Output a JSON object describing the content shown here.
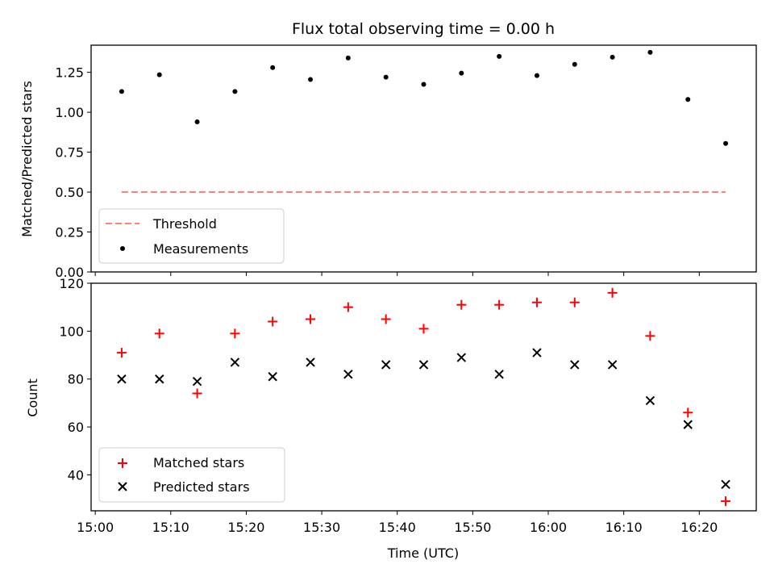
{
  "chart_data": [
    {
      "type": "scatter",
      "title": "Flux total observing time = 0.00 h",
      "xlabel": "",
      "ylabel": "Matched/Predicted stars",
      "ylim": [
        0,
        1.42
      ],
      "yticks": [
        0.0,
        0.25,
        0.5,
        0.75,
        1.0,
        1.25
      ],
      "ytick_labels": [
        "0.00",
        "0.25",
        "0.50",
        "0.75",
        "1.00",
        "1.25"
      ],
      "x_minutes": [
        903.5,
        908.5,
        913.5,
        918.5,
        923.5,
        928.5,
        933.5,
        938.5,
        943.5,
        948.5,
        953.5,
        958.5,
        963.5,
        968.5,
        973.5,
        978.5,
        983.5
      ],
      "series": [
        {
          "name": "Threshold",
          "kind": "line",
          "color": "#ff7f7f",
          "x": [
            903.5,
            983.5
          ],
          "values": [
            0.5,
            0.5
          ]
        },
        {
          "name": "Measurements",
          "kind": "dot",
          "color": "#000000",
          "values": [
            1.13,
            1.235,
            0.94,
            1.13,
            1.28,
            1.205,
            1.34,
            1.22,
            1.175,
            1.245,
            1.35,
            1.23,
            1.3,
            1.345,
            1.375,
            1.08,
            0.805
          ]
        }
      ],
      "legend_location": "lower-left"
    },
    {
      "type": "scatter",
      "title": "",
      "xlabel": "Time (UTC)",
      "ylabel": "Count",
      "ylim": [
        25,
        120
      ],
      "yticks": [
        40,
        60,
        80,
        100,
        120
      ],
      "ytick_labels": [
        "40",
        "60",
        "80",
        "100",
        "120"
      ],
      "x_minutes": [
        903.5,
        908.5,
        913.5,
        918.5,
        923.5,
        928.5,
        933.5,
        938.5,
        943.5,
        948.5,
        953.5,
        958.5,
        963.5,
        968.5,
        973.5,
        978.5,
        983.5
      ],
      "xticks_minutes": [
        900,
        910,
        920,
        930,
        940,
        950,
        960,
        970,
        980
      ],
      "xtick_labels": [
        "15:00",
        "15:10",
        "15:20",
        "15:30",
        "15:40",
        "15:50",
        "16:00",
        "16:10",
        "16:20"
      ],
      "series": [
        {
          "name": "Matched stars",
          "kind": "plus",
          "color": "#ff0000",
          "values": [
            91,
            99,
            74,
            99,
            104,
            105,
            110,
            105,
            101,
            111,
            111,
            112,
            112,
            116,
            98,
            66,
            29
          ]
        },
        {
          "name": "Predicted stars",
          "kind": "x",
          "color": "#000000",
          "values": [
            80,
            80,
            79,
            87,
            81,
            87,
            82,
            86,
            86,
            89,
            82,
            91,
            86,
            86,
            71,
            61,
            36
          ]
        }
      ],
      "legend_location": "lower-left"
    }
  ]
}
